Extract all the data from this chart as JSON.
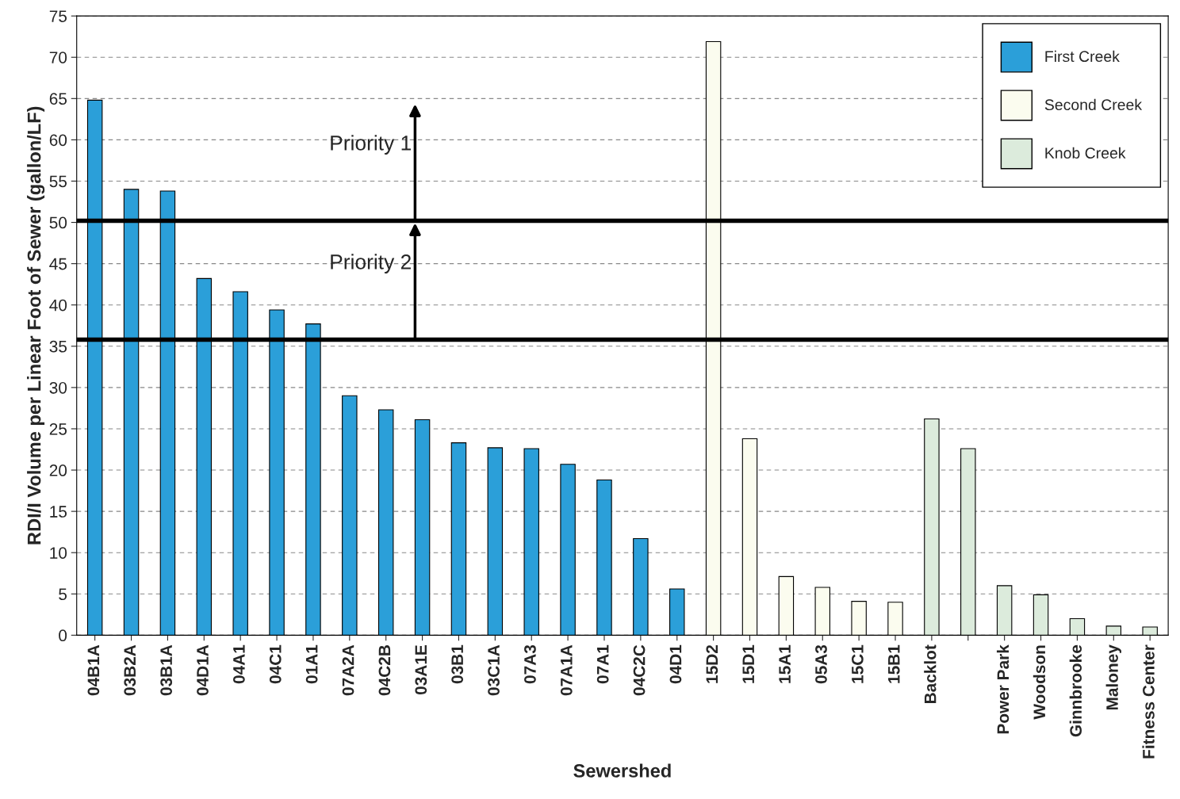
{
  "chart_data": {
    "type": "bar",
    "xlabel": "Sewershed",
    "ylabel": "RDI/I Volume per Linear Foot of Sewer (gallon/LF)",
    "categories": [
      "04B1A",
      "03B2A",
      "03B1A",
      "04D1A",
      "04A1",
      "04C1",
      "01A1",
      "07A2A",
      "04C2B",
      "03A1E",
      "03B1",
      "03C1A",
      "07A3",
      "07A1A",
      "07A1",
      "04C2C",
      "04D1",
      "15D2",
      "15D1",
      "15A1",
      "05A3",
      "15C1",
      "15B1",
      "Backlot",
      null,
      "Power Park",
      "Woodson",
      "Ginnbrooke",
      "Maloney",
      "Fitness Center"
    ],
    "series": [
      {
        "name": "First Creek",
        "color": "#2b9fd9",
        "values": [
          64.8,
          54,
          53.8,
          43.2,
          41.6,
          39.4,
          37.7,
          29,
          27.3,
          26.1,
          23.3,
          22.7,
          22.6,
          20.7,
          18.8,
          11.7,
          5.6,
          null,
          null,
          null,
          null,
          null,
          null,
          null,
          null,
          null,
          null,
          null,
          null,
          null
        ]
      },
      {
        "name": "Second Creek",
        "color": "#fbfcef",
        "values": [
          null,
          null,
          null,
          null,
          null,
          null,
          null,
          null,
          null,
          null,
          null,
          null,
          null,
          null,
          null,
          null,
          null,
          71.9,
          23.8,
          7.1,
          5.8,
          4.1,
          4.0,
          null,
          null,
          null,
          null,
          null,
          null,
          null
        ]
      },
      {
        "name": "Knob Creek",
        "color": "#dcebdc",
        "values": [
          null,
          null,
          null,
          null,
          null,
          null,
          null,
          null,
          null,
          null,
          null,
          null,
          null,
          null,
          null,
          null,
          null,
          null,
          null,
          null,
          null,
          null,
          null,
          26.2,
          22.6,
          6.0,
          4.9,
          2.0,
          1.1,
          1.0
        ]
      }
    ],
    "ylim": [
      0,
      75
    ],
    "yticks": [
      0,
      5,
      10,
      15,
      20,
      25,
      30,
      35,
      40,
      45,
      50,
      55,
      60,
      65,
      70,
      75
    ],
    "grid": "y",
    "legend": "top right",
    "ref_lines": [
      {
        "axis": "y",
        "value": 35.8,
        "color": "#000000"
      },
      {
        "axis": "y",
        "value": 50.2,
        "color": "#000000"
      }
    ],
    "annotations": [
      "Priority 1",
      "Priority 2"
    ]
  }
}
